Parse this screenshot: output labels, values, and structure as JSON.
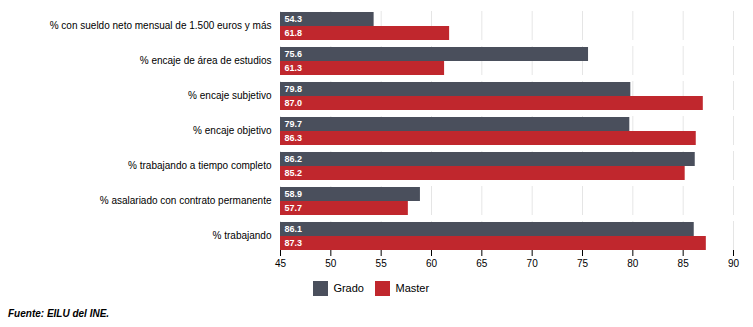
{
  "chart_data": {
    "type": "bar",
    "orientation": "horizontal",
    "categories": [
      "% con sueldo neto mensual de 1.500 euros y más",
      "% encaje de área de estudios",
      "% encaje subjetivo",
      "% encaje objetivo",
      "% trabajando a tiempo completo",
      "% asalariado con contrato permanente",
      "% trabajando"
    ],
    "series": [
      {
        "name": "Grado",
        "color": "#4a4f5c",
        "values": [
          54.3,
          75.6,
          79.8,
          79.7,
          86.2,
          58.9,
          86.1
        ],
        "value_labels": [
          "54.3",
          "75.6",
          "79.8",
          "79.7",
          "86.2",
          "58.9",
          "86.1"
        ]
      },
      {
        "name": "Master",
        "color": "#c0272d",
        "values": [
          61.8,
          61.3,
          87.0,
          86.3,
          85.2,
          57.7,
          87.3
        ],
        "value_labels": [
          "61.8",
          "61.3",
          "87.0",
          "86.3",
          "85.2",
          "57.7",
          "87.3"
        ]
      }
    ],
    "xlim": [
      45,
      90
    ],
    "xticks": [
      45,
      50,
      55,
      60,
      65,
      70,
      75,
      80,
      85,
      90
    ],
    "grid": true,
    "data_labels": true,
    "legend": "bottom",
    "caption": "Fuente: EILU del INE."
  }
}
